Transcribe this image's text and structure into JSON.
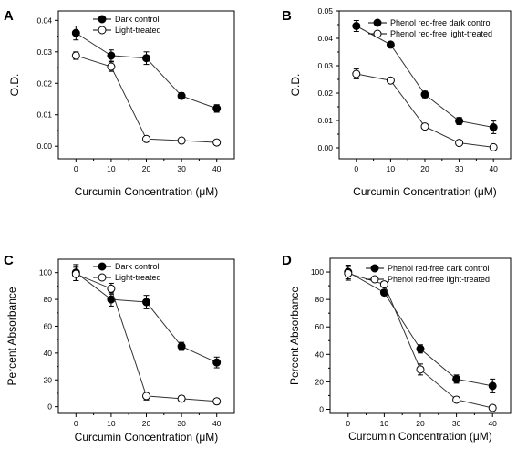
{
  "chart_data": [
    {
      "panel": "A",
      "type": "line",
      "xlabel": "Curcumin Concentration (μM)",
      "ylabel": "O.D.",
      "x": [
        0,
        10,
        20,
        30,
        40
      ],
      "xticks": [
        "0",
        "10",
        "20",
        "30",
        "40"
      ],
      "ylim": [
        -0.004,
        0.043
      ],
      "yticks": [
        "0.00",
        "0.01",
        "0.02",
        "0.03",
        "0.04"
      ],
      "ytick_values": [
        0,
        0.01,
        0.02,
        0.03,
        0.04
      ],
      "legend_placement": "top-center",
      "grid": false,
      "series": [
        {
          "name": "Dark control",
          "marker": "filled",
          "values": [
            0.036,
            0.0288,
            0.028,
            0.016,
            0.012
          ],
          "errors": [
            0.0022,
            0.0018,
            0.002,
            0.001,
            0.0012
          ]
        },
        {
          "name": "Light-treated",
          "marker": "open",
          "values": [
            0.0288,
            0.0253,
            0.0023,
            0.0018,
            0.0012
          ],
          "errors": [
            0.0012,
            0.0015,
            0.0008,
            0.0005,
            0.0005
          ]
        }
      ]
    },
    {
      "panel": "B",
      "type": "line",
      "xlabel": "Curcumin Concentration (μM)",
      "ylabel": "O.D.",
      "x": [
        0,
        10,
        20,
        30,
        40
      ],
      "xticks": [
        "0",
        "10",
        "20",
        "30",
        "40"
      ],
      "ylim": [
        -0.004,
        0.05
      ],
      "yticks": [
        "0.00",
        "0.01",
        "0.02",
        "0.03",
        "0.04",
        "0.05"
      ],
      "ytick_values": [
        0,
        0.01,
        0.02,
        0.03,
        0.04,
        0.05
      ],
      "legend_placement": "top-right",
      "grid": false,
      "series": [
        {
          "name": "Phenol red-free dark control",
          "marker": "filled",
          "values": [
            0.0445,
            0.0377,
            0.0195,
            0.0098,
            0.0075
          ],
          "errors": [
            0.002,
            0.0008,
            0.0012,
            0.0013,
            0.0023
          ]
        },
        {
          "name": "Phenol red-free light-treated",
          "marker": "open",
          "values": [
            0.027,
            0.0246,
            0.0078,
            0.0018,
            0.0002
          ],
          "errors": [
            0.0018,
            0.0008,
            0.0008,
            0.0005,
            0.0008
          ]
        }
      ]
    },
    {
      "panel": "C",
      "type": "line",
      "xlabel": "Curcumin Concentration (μM)",
      "ylabel": "Percent Absorbance",
      "x": [
        0,
        10,
        20,
        30,
        40
      ],
      "xticks": [
        "0",
        "10",
        "20",
        "30",
        "40"
      ],
      "ylim": [
        -5,
        110
      ],
      "yticks": [
        "0",
        "20",
        "40",
        "60",
        "80",
        "100"
      ],
      "ytick_values": [
        0,
        20,
        40,
        60,
        80,
        100
      ],
      "legend_placement": "top-center",
      "grid": false,
      "series": [
        {
          "name": "Dark control",
          "marker": "filled",
          "values": [
            100,
            80,
            78,
            45,
            33
          ],
          "errors": [
            6,
            5,
            5,
            3,
            4
          ]
        },
        {
          "name": "Light-treated",
          "marker": "open",
          "values": [
            99,
            88,
            8,
            6,
            4
          ],
          "errors": [
            5,
            4,
            3,
            2,
            2
          ]
        }
      ]
    },
    {
      "panel": "D",
      "type": "line",
      "xlabel": "Curcumin Concentration (μM)",
      "ylabel": "Percent Absorbance",
      "x": [
        0,
        10,
        20,
        30,
        40
      ],
      "xticks": [
        "0",
        "10",
        "20",
        "30",
        "40"
      ],
      "ylim": [
        -3,
        110
      ],
      "yticks": [
        "0",
        "20",
        "40",
        "60",
        "80",
        "100"
      ],
      "ytick_values": [
        0,
        20,
        40,
        60,
        80,
        100
      ],
      "legend_placement": "top-right",
      "grid": false,
      "series": [
        {
          "name": "Phenol red-free dark control",
          "marker": "filled",
          "values": [
            100,
            85,
            44,
            22,
            17
          ],
          "errors": [
            5,
            2,
            3,
            3,
            5
          ]
        },
        {
          "name": "Phenol red-free light-treated",
          "marker": "open",
          "values": [
            99,
            91,
            29,
            7,
            1
          ],
          "errors": [
            5,
            2,
            4,
            2,
            2
          ]
        }
      ]
    }
  ]
}
